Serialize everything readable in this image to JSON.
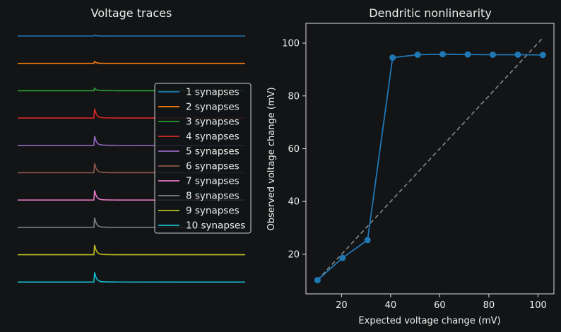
{
  "chart_data": [
    {
      "type": "line",
      "title": "Voltage traces",
      "axes_visible": false,
      "trace_offsets": [
        0,
        1,
        2,
        3,
        4,
        5,
        6,
        7,
        8,
        9
      ],
      "series": [
        {
          "name": "1 synapses",
          "color": "#1f77b4",
          "peak_relative": 0.03
        },
        {
          "name": "2 synapses",
          "color": "#ff7f0e",
          "peak_relative": 0.06
        },
        {
          "name": "3 synapses",
          "color": "#2ca02c",
          "peak_relative": 0.08
        },
        {
          "name": "4 synapses",
          "color": "#d62728",
          "peak_relative": 0.3
        },
        {
          "name": "5 synapses",
          "color": "#9467bd",
          "peak_relative": 0.3
        },
        {
          "name": "6 synapses",
          "color": "#8c564b",
          "peak_relative": 0.3
        },
        {
          "name": "7 synapses",
          "color": "#e377c2",
          "peak_relative": 0.31
        },
        {
          "name": "8 synapses",
          "color": "#7f7f7f",
          "peak_relative": 0.31
        },
        {
          "name": "9 synapses",
          "color": "#bcbd22",
          "peak_relative": 0.31
        },
        {
          "name": "10 synapses",
          "color": "#17becf",
          "peak_relative": 0.31
        }
      ],
      "stimulus_time_fraction": 0.335,
      "legend": "right"
    },
    {
      "type": "line",
      "title": "Dendritic nonlinearity",
      "xlabel": "Expected voltage change (mV)",
      "ylabel": "Observed voltage change (mV)",
      "xlim": [
        5.5,
        106.5
      ],
      "ylim": [
        5.0,
        107.5
      ],
      "xticks": [
        20,
        40,
        60,
        80,
        100
      ],
      "yticks": [
        20,
        40,
        60,
        80,
        100
      ],
      "series": [
        {
          "color": "#1f77b4",
          "marker": "circle",
          "x": [
            10.2,
            20.4,
            30.6,
            40.8,
            51.0,
            61.2,
            71.4,
            81.6,
            91.8,
            102.0
          ],
          "y": [
            10.2,
            18.6,
            25.4,
            94.5,
            95.6,
            95.8,
            95.7,
            95.6,
            95.6,
            95.5
          ]
        },
        {
          "color": "#888888",
          "style": "dashed",
          "x": [
            10.2,
            102.0
          ],
          "y": [
            10.2,
            102.0
          ]
        }
      ],
      "grid": false
    }
  ]
}
